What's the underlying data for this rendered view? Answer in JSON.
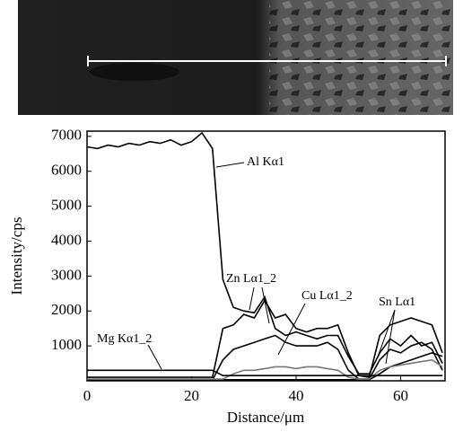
{
  "chart_data": {
    "type": "line",
    "x_label": "Distance/μm",
    "y_label": "Intensity/cps",
    "x": [
      0,
      2,
      4,
      6,
      8,
      10,
      12,
      14,
      16,
      18,
      20,
      22,
      24,
      26,
      28,
      30,
      32,
      34,
      36,
      38,
      40,
      42,
      44,
      46,
      48,
      50,
      52,
      54,
      56,
      58,
      60,
      62,
      64,
      66,
      68
    ],
    "xlim": [
      0,
      68.5
    ],
    "xticks": [
      0,
      20,
      40,
      60
    ],
    "ylim": [
      0,
      7150
    ],
    "yticks": [
      1000,
      2000,
      3000,
      4000,
      5000,
      6000,
      7000
    ],
    "series": [
      {
        "name": "Al Kα1",
        "color": "#000000",
        "values": [
          6700,
          6650,
          6750,
          6700,
          6800,
          6750,
          6850,
          6800,
          6900,
          6750,
          6850,
          7100,
          6650,
          2900,
          2100,
          2000,
          1950,
          2400,
          1500,
          1300,
          1400,
          1300,
          1200,
          1300,
          1300,
          700,
          200,
          200,
          800,
          1200,
          1000,
          1300,
          1000,
          1100,
          500
        ]
      },
      {
        "name": "Zn Lα1_2",
        "color": "#000000",
        "values": [
          100,
          100,
          100,
          100,
          100,
          100,
          100,
          100,
          100,
          100,
          100,
          100,
          100,
          1500,
          1600,
          1900,
          1800,
          2300,
          1800,
          1900,
          1500,
          1400,
          1500,
          1500,
          1600,
          800,
          150,
          100,
          1300,
          1600,
          1700,
          1800,
          1700,
          1600,
          800
        ]
      },
      {
        "name": "Cu Lα1_2",
        "color": "#000000",
        "values": [
          20,
          20,
          20,
          20,
          20,
          20,
          20,
          20,
          20,
          20,
          20,
          20,
          20,
          600,
          900,
          1000,
          1100,
          1200,
          1300,
          1100,
          1000,
          1000,
          1000,
          1100,
          900,
          300,
          50,
          50,
          600,
          900,
          800,
          1000,
          1100,
          900,
          300
        ]
      },
      {
        "name": "Sn Lα1",
        "color": "#000000",
        "values": [
          30,
          30,
          30,
          30,
          30,
          30,
          30,
          30,
          30,
          30,
          30,
          30,
          30,
          30,
          30,
          30,
          30,
          30,
          30,
          30,
          30,
          30,
          30,
          30,
          30,
          30,
          30,
          30,
          200,
          400,
          500,
          600,
          700,
          800,
          700
        ]
      },
      {
        "color": "#777777",
        "values": [
          50,
          50,
          50,
          50,
          50,
          50,
          50,
          50,
          50,
          50,
          50,
          50,
          50,
          50,
          200,
          300,
          300,
          350,
          400,
          400,
          350,
          400,
          400,
          350,
          300,
          100,
          50,
          50,
          300,
          400,
          450,
          500,
          550,
          600,
          400
        ]
      },
      {
        "name": "Mg Kα1_2",
        "color": "#000000",
        "values": [
          300,
          300,
          300,
          300,
          300,
          300,
          300,
          300,
          300,
          300,
          300,
          300,
          300,
          150,
          150,
          150,
          150,
          150,
          150,
          150,
          150,
          150,
          150,
          150,
          150,
          150,
          150,
          150,
          150,
          150,
          150,
          150,
          150,
          150,
          150
        ]
      }
    ]
  }
}
